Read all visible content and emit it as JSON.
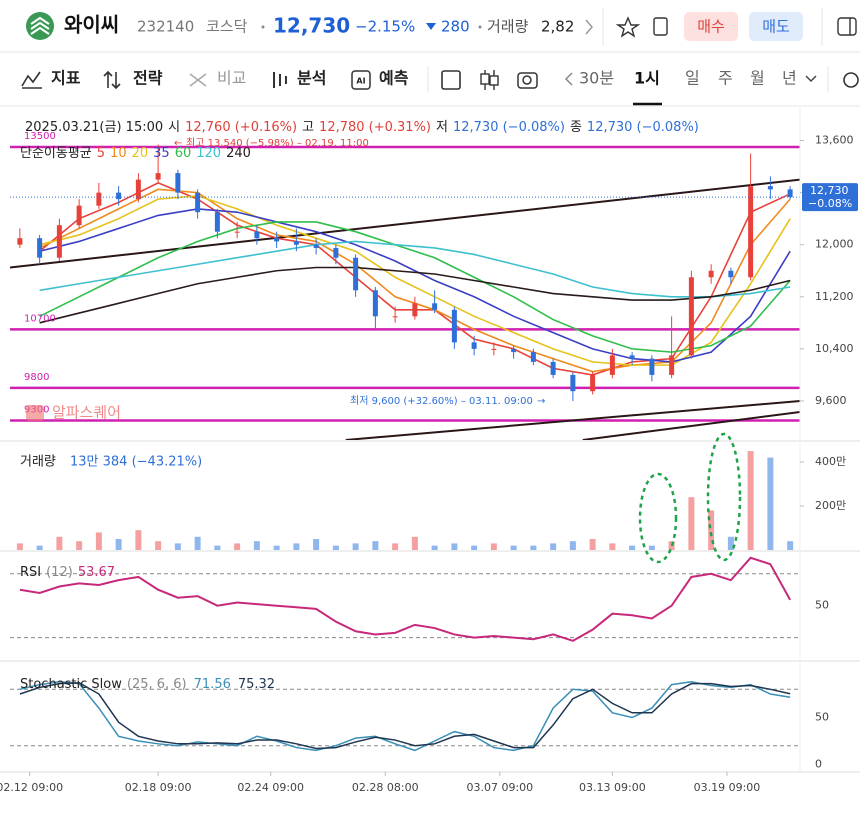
{
  "header": {
    "name": "와이씨",
    "code": "232140",
    "market": "코스닥",
    "price": "12,730",
    "change_pct": "−2.15%",
    "change": "280",
    "volume_label": "거래량",
    "volume": "2,82",
    "buy": "매수",
    "sell": "매도"
  },
  "toolbar": {
    "indicators": "지표",
    "strategy": "전략",
    "compare": "비교",
    "analysis": "분석",
    "forecast": "예측",
    "periods": [
      "30분",
      "1시",
      "일",
      "주",
      "월",
      "년"
    ]
  },
  "chart_data": {
    "type": "candlestick",
    "info": {
      "date": "2025.03.21(금) 15:00",
      "open_label": "시",
      "open": "12,760 (+0.16%)",
      "high_label": "고",
      "high": "12,780 (+0.31%)",
      "low_label": "저",
      "low": "12,730 (−0.08%)",
      "close_label": "종",
      "close": "12,730 (−0.08%)"
    },
    "ylim": [
      9000,
      14100
    ],
    "yticks": [
      {
        "value": 9600,
        "label": "9,600"
      },
      {
        "value": 10400,
        "label": "10,400"
      },
      {
        "value": 11200,
        "label": "11,200"
      },
      {
        "value": 12000,
        "label": "12,000"
      },
      {
        "value": 12800,
        "label": "12,800"
      },
      {
        "value": 13600,
        "label": "13,600"
      }
    ],
    "levels": [
      {
        "value": 13500,
        "label": "13500"
      },
      {
        "value": 10700,
        "label": "10700"
      },
      {
        "value": 9800,
        "label": "9800"
      },
      {
        "value": 9300,
        "label": "9300"
      }
    ],
    "level_color": "#d020b0",
    "trendlines": [
      {
        "x": [
          0,
          39
        ],
        "y": [
          11650,
          13000
        ]
      },
      {
        "x": [
          17,
          39
        ],
        "y": [
          9000,
          9600
        ]
      },
      {
        "x": [
          29,
          39
        ],
        "y": [
          9000,
          9430
        ]
      }
    ],
    "ohlc": [
      [
        12000,
        12250,
        11950,
        12100
      ],
      [
        12100,
        12150,
        11700,
        11800
      ],
      [
        11800,
        12400,
        11750,
        12300
      ],
      [
        12300,
        12700,
        12250,
        12600
      ],
      [
        12600,
        12950,
        12550,
        12800
      ],
      [
        12800,
        12900,
        12600,
        12700
      ],
      [
        12700,
        13100,
        12650,
        13000
      ],
      [
        13000,
        13540,
        12950,
        13100
      ],
      [
        13100,
        13150,
        12700,
        12800
      ],
      [
        12800,
        12850,
        12400,
        12500
      ],
      [
        12500,
        12550,
        12100,
        12200
      ],
      [
        12200,
        12350,
        12100,
        12200
      ],
      [
        12200,
        12300,
        12000,
        12100
      ],
      [
        12100,
        12200,
        11950,
        12050
      ],
      [
        12050,
        12250,
        11900,
        12000
      ],
      [
        12000,
        12100,
        11850,
        11950
      ],
      [
        11950,
        12000,
        11700,
        11800
      ],
      [
        11800,
        11850,
        11200,
        11300
      ],
      [
        11300,
        11350,
        10700,
        10900
      ],
      [
        10900,
        11050,
        10800,
        10900
      ],
      [
        10900,
        11200,
        10850,
        11100
      ],
      [
        11100,
        11300,
        10950,
        11000
      ],
      [
        11000,
        11050,
        10400,
        10500
      ],
      [
        10500,
        10600,
        10300,
        10400
      ],
      [
        10400,
        10500,
        10300,
        10400
      ],
      [
        10400,
        10450,
        10250,
        10350
      ],
      [
        10350,
        10400,
        10150,
        10200
      ],
      [
        10200,
        10250,
        9950,
        10000
      ],
      [
        10000,
        10050,
        9600,
        9750
      ],
      [
        9750,
        10050,
        9700,
        10000
      ],
      [
        10000,
        10400,
        9950,
        10300
      ],
      [
        10300,
        10350,
        10150,
        10250
      ],
      [
        10250,
        10300,
        9900,
        10000
      ],
      [
        10000,
        10900,
        9950,
        10300
      ],
      [
        10300,
        11600,
        10250,
        11500
      ],
      [
        11500,
        11700,
        11400,
        11600
      ],
      [
        11600,
        11650,
        11400,
        11500
      ],
      [
        11500,
        13400,
        11450,
        12900
      ],
      [
        12900,
        13050,
        12700,
        12850
      ],
      [
        12850,
        12900,
        12700,
        12730
      ]
    ],
    "up_color": "#e8413a",
    "down_color": "#2f6fd8",
    "moving_averages": {
      "label": "단순이동평균",
      "x": [
        1,
        3,
        5,
        7,
        9,
        11,
        13,
        15,
        17,
        19,
        21,
        23,
        25,
        27,
        29,
        31,
        33,
        35,
        37,
        39
      ],
      "series": [
        {
          "name": "5",
          "color": "#e8413a",
          "values": [
            11900,
            12400,
            12650,
            12950,
            12700,
            12300,
            12100,
            12000,
            11500,
            11000,
            11000,
            10550,
            10400,
            10100,
            10000,
            10200,
            10250,
            11200,
            12500,
            12780
          ]
        },
        {
          "name": "10",
          "color": "#f08a1c",
          "values": [
            11950,
            12250,
            12550,
            12850,
            12800,
            12400,
            12150,
            12050,
            11700,
            11200,
            11000,
            10700,
            10450,
            10250,
            10050,
            10150,
            10200,
            10800,
            12000,
            12700
          ]
        },
        {
          "name": "20",
          "color": "#e6c21a",
          "values": [
            12000,
            12150,
            12400,
            12700,
            12750,
            12550,
            12300,
            12100,
            11900,
            11500,
            11200,
            10900,
            10650,
            10400,
            10200,
            10150,
            10150,
            10500,
            11400,
            12400
          ]
        },
        {
          "name": "35",
          "color": "#3b3fc4",
          "values": [
            11900,
            12050,
            12250,
            12450,
            12550,
            12500,
            12350,
            12200,
            12000,
            11750,
            11450,
            11200,
            10900,
            10650,
            10400,
            10250,
            10200,
            10350,
            10900,
            11900
          ]
        },
        {
          "name": "60",
          "color": "#2fbf4a",
          "values": [
            10900,
            11200,
            11500,
            11800,
            12050,
            12250,
            12350,
            12350,
            12200,
            12000,
            11800,
            11500,
            11200,
            10850,
            10600,
            10400,
            10350,
            10450,
            10750,
            11450
          ]
        },
        {
          "name": "120",
          "color": "#3fc0cf",
          "values": [
            11300,
            11400,
            11500,
            11600,
            11700,
            11800,
            11900,
            12000,
            12050,
            12000,
            11950,
            11850,
            11700,
            11550,
            11350,
            11250,
            11200,
            11200,
            11250,
            11350
          ]
        },
        {
          "name": "240",
          "color": "#2a1a1a",
          "values": [
            10800,
            10950,
            11100,
            11250,
            11400,
            11500,
            11600,
            11650,
            11650,
            11600,
            11550,
            11450,
            11350,
            11250,
            11200,
            11150,
            11150,
            11200,
            11300,
            11450
          ]
        }
      ]
    },
    "high_note": "최고 13,540 (−5.98%) – 02.19. 11:00",
    "low_note": "최저 9,600 (+32.60%) – 03.11. 09:00",
    "watermark": "알파스퀘어",
    "price_tag": {
      "value": 12730,
      "label": "12,730",
      "change": "−0.08%"
    },
    "volume": {
      "title": "거래량",
      "summary": "13만 384 (−43.21%)",
      "ylim": [
        0,
        491
      ],
      "yticks": [
        {
          "value": 200,
          "label": "200만"
        },
        {
          "value": 400,
          "label": "400만"
        }
      ],
      "values": [
        30,
        20,
        60,
        40,
        80,
        50,
        90,
        40,
        30,
        60,
        20,
        30,
        40,
        20,
        30,
        50,
        20,
        30,
        40,
        30,
        60,
        20,
        30,
        20,
        30,
        20,
        20,
        30,
        40,
        50,
        30,
        20,
        20,
        40,
        240,
        180,
        60,
        450,
        420,
        40
      ]
    },
    "rsi": {
      "title": "RSI",
      "param": "(12)",
      "color": "#c8287a",
      "ylim": [
        16,
        83
      ],
      "yticks": [
        50
      ],
      "guides": [
        70,
        30
      ],
      "values": [
        60,
        58,
        62,
        64,
        63,
        66,
        68,
        60,
        55,
        56,
        50,
        52,
        51,
        50,
        49,
        48,
        40,
        34,
        32,
        33,
        38,
        36,
        32,
        30,
        31,
        30,
        29,
        32,
        28,
        35,
        45,
        44,
        42,
        50,
        68,
        70,
        66,
        80,
        76,
        53.67
      ]
    },
    "stochastic": {
      "title": "Stochastic Slow",
      "param": "(25, 6, 6)",
      "ylim": [
        -8,
        108
      ],
      "yticks": [
        0,
        50
      ],
      "guides": [
        80,
        20
      ],
      "series": [
        {
          "color": "#3a8fb7",
          "values": [
            80,
            85,
            88,
            86,
            60,
            30,
            25,
            22,
            20,
            24,
            22,
            20,
            30,
            25,
            18,
            15,
            20,
            28,
            30,
            22,
            15,
            25,
            35,
            30,
            18,
            15,
            20,
            60,
            80,
            78,
            55,
            50,
            60,
            85,
            88,
            84,
            82,
            85,
            75,
            71.56
          ]
        },
        {
          "color": "#1f3550",
          "values": [
            75,
            82,
            86,
            87,
            75,
            45,
            30,
            25,
            22,
            22,
            23,
            22,
            26,
            26,
            22,
            17,
            18,
            24,
            29,
            26,
            20,
            22,
            30,
            32,
            25,
            18,
            18,
            42,
            70,
            80,
            65,
            55,
            55,
            75,
            86,
            86,
            83,
            84,
            80,
            75.32
          ]
        }
      ]
    },
    "xticks": [
      {
        "value": 0.5,
        "label": "02.12 09:00"
      },
      {
        "value": 7,
        "label": "02.18 09:00"
      },
      {
        "value": 12.7,
        "label": "02.24 09:00"
      },
      {
        "value": 18.5,
        "label": "02.28 08:00"
      },
      {
        "value": 24.3,
        "label": "03.07 09:00"
      },
      {
        "value": 30,
        "label": "03.13 09:00"
      },
      {
        "value": 35.8,
        "label": "03.19 09:00"
      }
    ]
  }
}
